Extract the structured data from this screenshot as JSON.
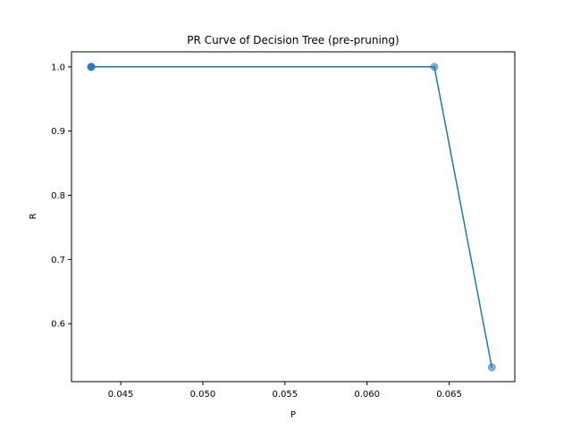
{
  "chart_data": {
    "type": "line",
    "title": "PR Curve of Decision Tree (pre-pruning)",
    "xlabel": "P",
    "ylabel": "R",
    "xlim": [
      0.042,
      0.069
    ],
    "ylim": [
      0.5097,
      1.0234
    ],
    "xticks": [
      0.045,
      0.05,
      0.055,
      0.06,
      0.065
    ],
    "xtick_labels": [
      "0.045",
      "0.050",
      "0.055",
      "0.060",
      "0.065"
    ],
    "yticks": [
      0.6,
      0.7,
      0.8,
      0.9,
      1.0
    ],
    "ytick_labels": [
      "0.6",
      "0.7",
      "0.8",
      "0.9",
      "1.0"
    ],
    "grid": false,
    "series": [
      {
        "color": "#1f77b4",
        "markers": true,
        "points": [
          {
            "x": 0.0432,
            "y": 1.0
          },
          {
            "x": 0.0432,
            "y": 1.0
          },
          {
            "x": 0.0432,
            "y": 1.0
          },
          {
            "x": 0.0641,
            "y": 1.0
          },
          {
            "x": 0.0676,
            "y": 0.532
          }
        ]
      }
    ]
  }
}
